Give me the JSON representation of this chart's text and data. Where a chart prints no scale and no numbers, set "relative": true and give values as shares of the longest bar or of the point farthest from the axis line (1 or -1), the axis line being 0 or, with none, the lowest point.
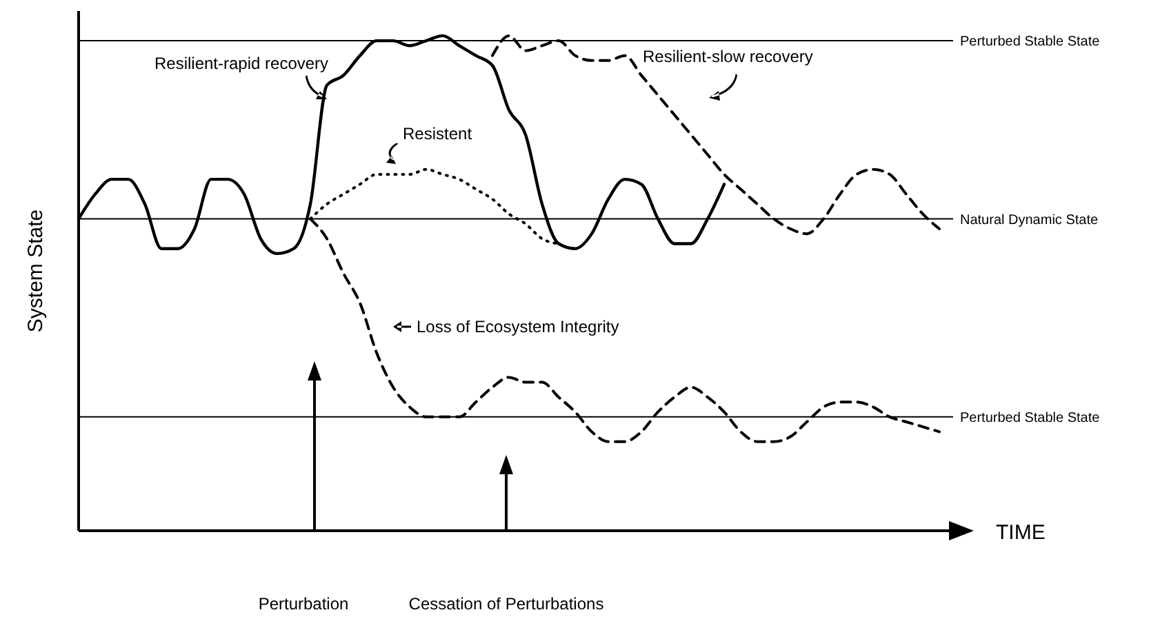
{
  "chart_data": {
    "type": "line",
    "relative": true,
    "xlabel": "TIME",
    "ylabel": "System State",
    "categories": [
      null,
      null,
      null,
      null,
      null,
      null,
      null,
      null,
      null,
      null,
      null,
      null,
      null,
      null,
      null,
      null,
      null,
      null,
      null,
      null,
      null,
      null,
      null,
      null,
      null,
      null,
      null,
      null,
      null,
      null,
      null,
      null,
      null,
      null,
      null,
      null,
      null,
      null,
      null,
      null,
      null,
      null,
      null,
      null,
      null,
      null,
      null,
      null,
      null,
      null,
      null,
      null,
      null
    ],
    "series": [
      {
        "name": "Resilient-rapid recovery",
        "color": "#000000",
        "line_style": "solid",
        "values": [
          0.63,
          0.68,
          0.71,
          0.71,
          0.66,
          0.57,
          0.57,
          0.61,
          0.71,
          0.71,
          0.68,
          0.59,
          0.56,
          0.57,
          0.66,
          0.9,
          0.92,
          0.96,
          0.99,
          0.99,
          0.98,
          0.99,
          1,
          0.98,
          0.96,
          0.94,
          0.85,
          0.8,
          0.66,
          0.58,
          0.57,
          0.6,
          0.67,
          0.71,
          0.7,
          0.63,
          0.58,
          0.58,
          0.63,
          0.7,
          null,
          null,
          null,
          null,
          null,
          null,
          null,
          null,
          null,
          null,
          null,
          null,
          null
        ]
      },
      {
        "name": "Resistent",
        "color": "#000000",
        "line_style": "dotted",
        "values": [
          null,
          null,
          null,
          null,
          null,
          null,
          null,
          null,
          null,
          null,
          null,
          null,
          null,
          null,
          0.63,
          0.66,
          0.68,
          0.7,
          0.72,
          0.72,
          0.72,
          0.73,
          0.72,
          0.71,
          0.69,
          0.67,
          0.64,
          0.62,
          0.59,
          0.58,
          null,
          null,
          null,
          null,
          null,
          null,
          null,
          null,
          null,
          null,
          null,
          null,
          null,
          null,
          null,
          null,
          null,
          null,
          null,
          null,
          null,
          null,
          null
        ]
      },
      {
        "name": "Resilient-slow recovery",
        "color": "#000000",
        "line_style": "dashed",
        "values": [
          null,
          null,
          null,
          null,
          null,
          null,
          null,
          null,
          null,
          null,
          null,
          null,
          null,
          null,
          null,
          null,
          null,
          null,
          null,
          null,
          null,
          null,
          null,
          null,
          null,
          0.96,
          1,
          0.97,
          0.98,
          0.99,
          0.96,
          0.95,
          0.95,
          0.96,
          0.92,
          0.88,
          0.84,
          0.8,
          0.76,
          0.72,
          0.69,
          0.66,
          0.63,
          0.61,
          0.6,
          0.63,
          0.68,
          0.72,
          0.73,
          0.72,
          0.68,
          0.64,
          0.61
        ]
      },
      {
        "name": "Loss of Ecosystem Integrity",
        "color": "#000000",
        "line_style": "dashed",
        "values": [
          null,
          null,
          null,
          null,
          null,
          null,
          null,
          null,
          null,
          null,
          null,
          null,
          null,
          null,
          0.63,
          0.59,
          0.52,
          0.46,
          0.36,
          0.29,
          0.25,
          0.23,
          0.23,
          0.23,
          0.26,
          0.29,
          0.31,
          0.3,
          0.3,
          0.27,
          0.24,
          0.2,
          0.18,
          0.18,
          0.2,
          0.24,
          0.27,
          0.29,
          0.27,
          0.24,
          0.2,
          0.18,
          0.18,
          0.19,
          0.22,
          0.25,
          0.26,
          0.26,
          0.25,
          0.23,
          0.22,
          0.21,
          0.2
        ]
      }
    ],
    "ref_lines": [
      {
        "axis": "y",
        "value": 0.99,
        "label": "Perturbed Stable State",
        "color": "#000000"
      },
      {
        "axis": "y",
        "value": 0.63,
        "label": "Natural Dynamic State",
        "color": "#000000"
      },
      {
        "axis": "y",
        "value": 0.23,
        "label": "Perturbed Stable State",
        "color": "#000000"
      }
    ],
    "annotations": [
      "Perturbation",
      "Cessation of Perturbations"
    ]
  }
}
